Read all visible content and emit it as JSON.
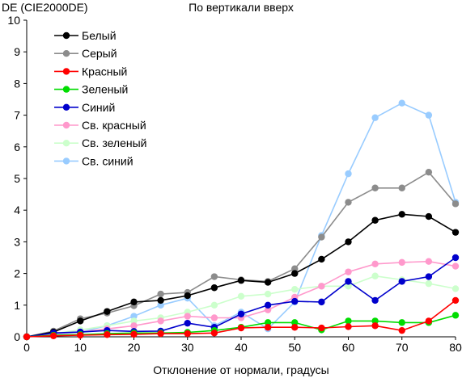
{
  "chart_data": {
    "type": "line",
    "title": "По вертикали вверх",
    "ylabel": "DE (CIE2000DE)",
    "xlabel": "Отклонение от нормали, градусы",
    "xlim": [
      0,
      80
    ],
    "ylim": [
      0,
      10
    ],
    "x_ticks": [
      "0",
      "10",
      "20",
      "30",
      "40",
      "50",
      "60",
      "70",
      "80"
    ],
    "y_ticks": [
      "0",
      "1",
      "2",
      "3",
      "4",
      "5",
      "6",
      "7",
      "8",
      "9",
      "10"
    ],
    "grid": false,
    "legend_position": "top-left",
    "x": [
      0,
      5,
      10,
      15,
      20,
      25,
      30,
      35,
      40,
      45,
      50,
      55,
      60,
      65,
      70,
      75,
      80
    ],
    "series": [
      {
        "name": "Белый",
        "color": "#000000",
        "values": [
          0,
          0.15,
          0.5,
          0.8,
          1.1,
          1.15,
          1.3,
          1.55,
          1.78,
          1.72,
          2.0,
          2.45,
          3.0,
          3.68,
          3.87,
          3.8,
          3.3
        ]
      },
      {
        "name": "Серый",
        "color": "#8c8c8c",
        "values": [
          0,
          0.18,
          0.57,
          0.75,
          0.98,
          1.35,
          1.4,
          1.9,
          1.8,
          1.75,
          2.15,
          3.15,
          4.25,
          4.7,
          4.7,
          5.2,
          4.2
        ]
      },
      {
        "name": "Красный",
        "color": "#ff0000",
        "values": [
          0,
          0.03,
          0.05,
          0.07,
          0.08,
          0.1,
          0.1,
          0.12,
          0.28,
          0.3,
          0.3,
          0.28,
          0.32,
          0.35,
          0.2,
          0.5,
          1.15
        ]
      },
      {
        "name": "Зеленый",
        "color": "#00dd00",
        "values": [
          0,
          0.05,
          0.07,
          0.1,
          0.12,
          0.12,
          0.14,
          0.2,
          0.3,
          0.45,
          0.45,
          0.22,
          0.5,
          0.5,
          0.45,
          0.45,
          0.68
        ]
      },
      {
        "name": "Синий",
        "color": "#0000cc",
        "values": [
          0,
          0.12,
          0.15,
          0.2,
          0.17,
          0.18,
          0.43,
          0.3,
          0.72,
          1.0,
          1.12,
          1.1,
          1.75,
          1.15,
          1.75,
          1.9,
          2.5
        ]
      },
      {
        "name": "Св. красный",
        "color": "#ff99cc",
        "values": [
          0,
          0.1,
          0.15,
          0.25,
          0.35,
          0.5,
          0.65,
          0.6,
          0.6,
          0.85,
          1.25,
          1.6,
          2.05,
          2.3,
          2.35,
          2.38,
          2.23
        ]
      },
      {
        "name": "Св. зеленый",
        "color": "#ccffcc",
        "values": [
          0,
          0.1,
          0.22,
          0.35,
          0.5,
          0.6,
          0.78,
          1.0,
          1.28,
          1.35,
          1.5,
          1.6,
          1.6,
          1.92,
          1.8,
          1.68,
          1.52
        ]
      },
      {
        "name": "Св. синий",
        "color": "#99ccff",
        "values": [
          0,
          0.08,
          0.15,
          0.35,
          0.65,
          1.0,
          1.22,
          0.35,
          0.78,
          0.25,
          1.1,
          3.2,
          5.15,
          6.92,
          7.38,
          7.0,
          4.25
        ]
      }
    ]
  }
}
